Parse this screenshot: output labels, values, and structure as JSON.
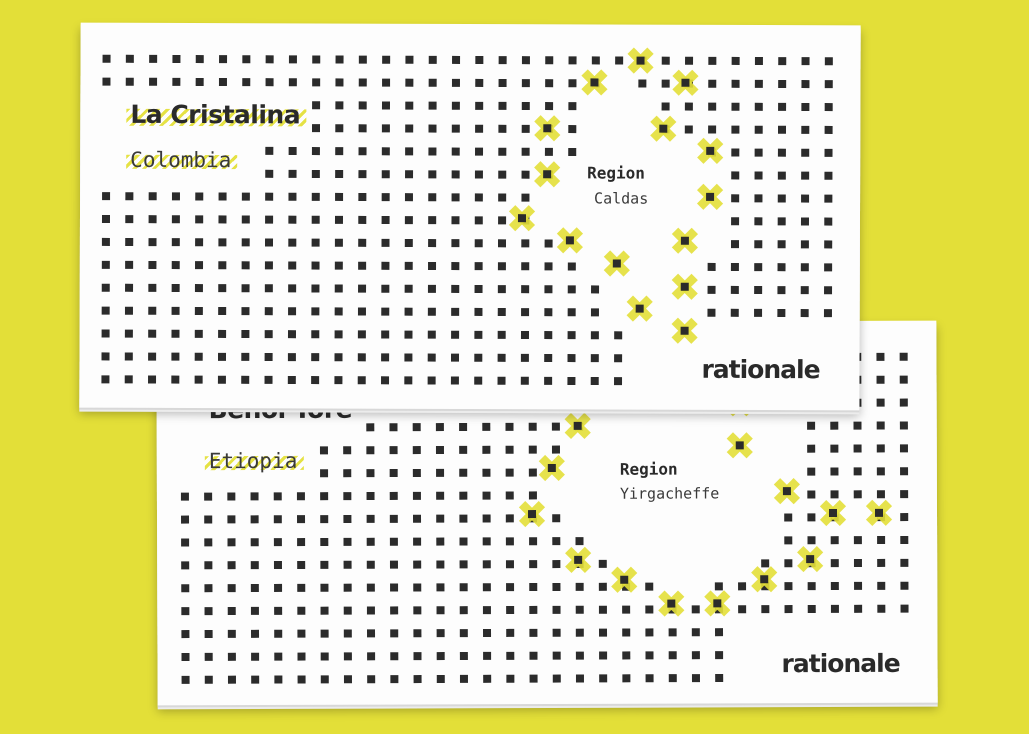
{
  "cards": [
    {
      "id": "front",
      "name": "La Cristalina",
      "country": "Colombia",
      "region_label": "Region",
      "region_value": "Caldas",
      "brand": "rationale",
      "accent": "#e3df38",
      "dot_color": "#2b2b2b"
    },
    {
      "id": "back",
      "name": "Benoi Tore",
      "country": "Etiopia",
      "region_label": "Region",
      "region_value": "Yirgacheffe",
      "brand": "rationale",
      "accent": "#e3df38",
      "dot_color": "#2b2b2b"
    }
  ],
  "background_color": "#e3df38"
}
